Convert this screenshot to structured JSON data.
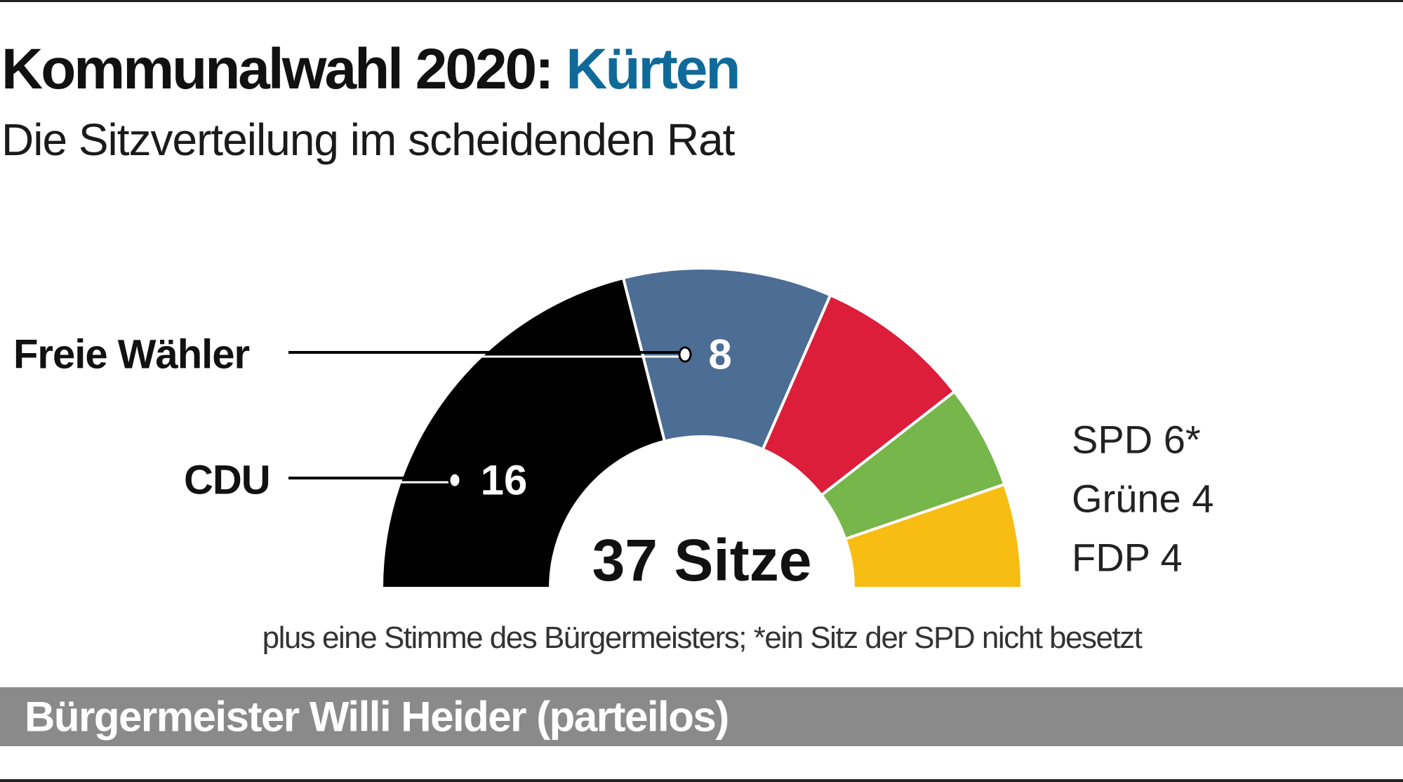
{
  "header": {
    "title_main": "Kommunalwahl 2020: ",
    "title_accent": "Kürten",
    "subtitle": "Die Sitzverteilung im scheidenden Rat"
  },
  "footnote": "plus eine Stimme des Bürgermeisters; *ein Sitz der SPD nicht besetzt",
  "mayor_bar": "Bürgermeister Willi Heider (parteilos)",
  "colors": {
    "title_accent": "#0f6a99",
    "bar": "#8a8a8a"
  },
  "chart_data": {
    "type": "pie",
    "subtype": "semicircle-parliament",
    "center_label": "37 Sitze",
    "series": [
      {
        "name": "CDU",
        "value": 16,
        "color": "#000000",
        "label": "16"
      },
      {
        "name": "Freie Wähler",
        "value": 8,
        "color": "#4c6d94",
        "label": "8"
      },
      {
        "name": "SPD",
        "value": 6,
        "color": "#dc1e3b",
        "label": "SPD 6*"
      },
      {
        "name": "Grüne",
        "value": 4,
        "color": "#77b64a",
        "label": "Grüne 4"
      },
      {
        "name": "FDP",
        "value": 4,
        "color": "#f8bd12",
        "label": "FDP 4"
      }
    ]
  }
}
